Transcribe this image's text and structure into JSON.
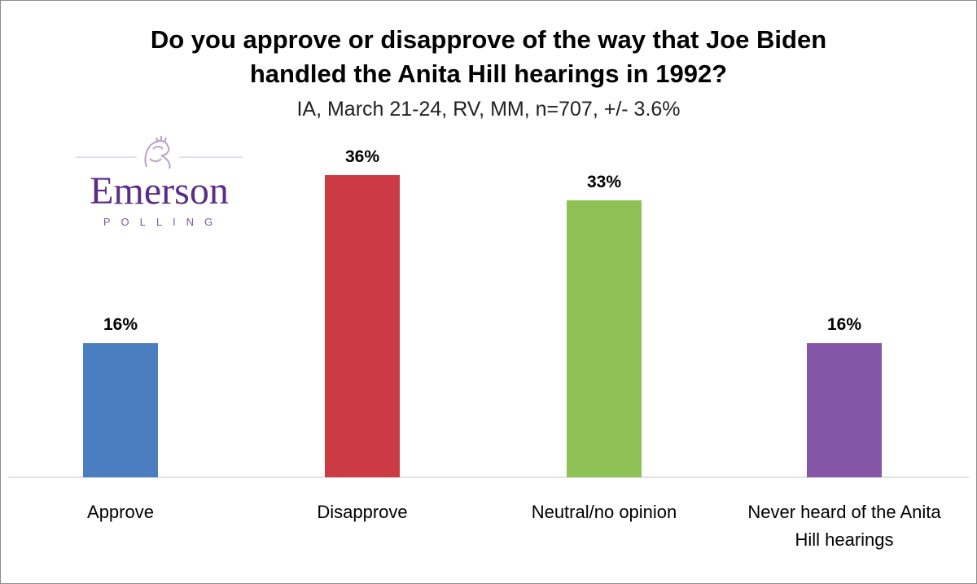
{
  "chart_data": {
    "type": "bar",
    "title_line1": "Do you approve or disapprove of the way that Joe Biden",
    "title_line2": "handled the Anita Hill hearings in 1992?",
    "subtitle": "IA, March 21-24, RV, MM, n=707, +/- 3.6%",
    "categories": [
      [
        "Approve"
      ],
      [
        "Disapprove"
      ],
      [
        "Neutral/no opinion"
      ],
      [
        "Never heard of the Anita",
        "Hill hearings"
      ]
    ],
    "values": [
      16,
      36,
      33,
      16
    ],
    "value_labels": [
      "16%",
      "36%",
      "33%",
      "16%"
    ],
    "colors": [
      "#4a7ec1",
      "#cc3b44",
      "#8fc256",
      "#8656a6"
    ],
    "ylim": [
      0,
      40
    ],
    "grid": false,
    "legend": "none"
  },
  "logo": {
    "name": "Emerson",
    "sub": "POLLING"
  }
}
